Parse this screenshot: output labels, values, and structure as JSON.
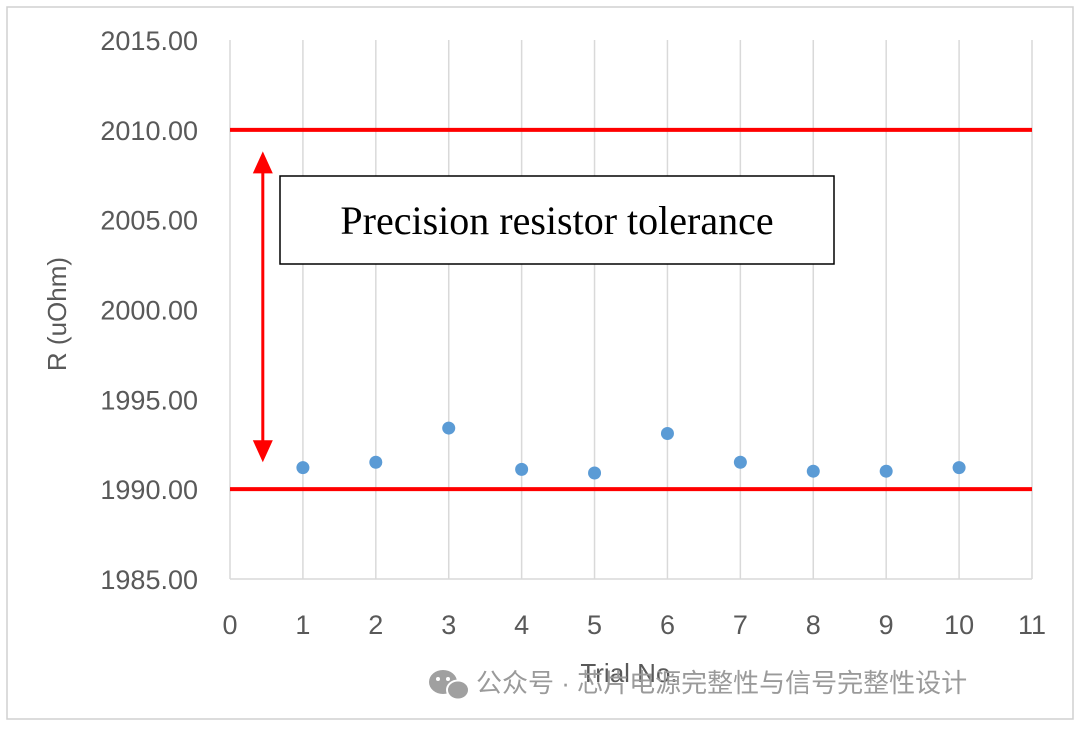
{
  "chart_data": {
    "type": "scatter",
    "title": "",
    "xlabel": "Trial No.",
    "ylabel": "R (uOhm)",
    "xlim": [
      0,
      11
    ],
    "ylim": [
      1985.0,
      2015.0
    ],
    "x_ticks": [
      "0",
      "1",
      "2",
      "3",
      "4",
      "5",
      "6",
      "7",
      "8",
      "9",
      "10",
      "11"
    ],
    "y_ticks": [
      "1985.00",
      "1990.00",
      "1995.00",
      "2000.00",
      "2005.00",
      "2010.00",
      "2015.00"
    ],
    "grid": "vertical",
    "series": [
      {
        "x": [
          1,
          2,
          3,
          4,
          5,
          6,
          7,
          8,
          9,
          10
        ],
        "y": [
          1991.2,
          1991.5,
          1993.4,
          1991.1,
          1990.9,
          1993.1,
          1991.5,
          1991.0,
          1991.0,
          1991.2
        ],
        "color": "#5b9bd5"
      }
    ],
    "limits": [
      {
        "y": 2010.0,
        "color": "#ff0000"
      },
      {
        "y": 1990.0,
        "color": "#ff0000"
      }
    ],
    "annotation": {
      "text": "Precision resistor tolerance",
      "arrow_color": "#ff0000",
      "arrow_x": 0.45,
      "arrow_y_from": 1991.5,
      "arrow_y_to": 2008.8
    }
  },
  "watermark": {
    "text": "公众号 · 芯片电源完整性与信号完整性设计",
    "icon": "wechat-icon"
  }
}
